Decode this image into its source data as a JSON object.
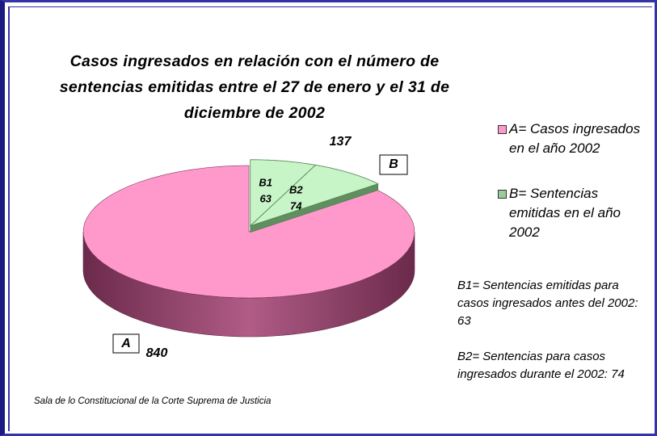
{
  "chart_data": {
    "type": "pie",
    "title": "Casos ingresados en relación con el número de sentencias emitidas entre el 27 de enero y el 31 de diciembre de 2002",
    "slices": [
      {
        "name": "B",
        "value": 137,
        "color": "#c8f5c8",
        "legend": "B= Sentencias emitidas en el año 2002",
        "parts": [
          {
            "name": "B1",
            "value": 63
          },
          {
            "name": "B2",
            "value": 74
          }
        ]
      },
      {
        "name": "A",
        "value": 840,
        "color": "#ff99cc",
        "legend": "A= Casos ingresados en el año 2002"
      }
    ],
    "notes": [
      "B1= Sentencias emitidas para casos ingresados antes del 2002: 63",
      "B2= Sentencias para casos ingresados durante el 2002: 74"
    ],
    "source": "Sala de lo Constitucional de la Corte Suprema de Justicia"
  }
}
